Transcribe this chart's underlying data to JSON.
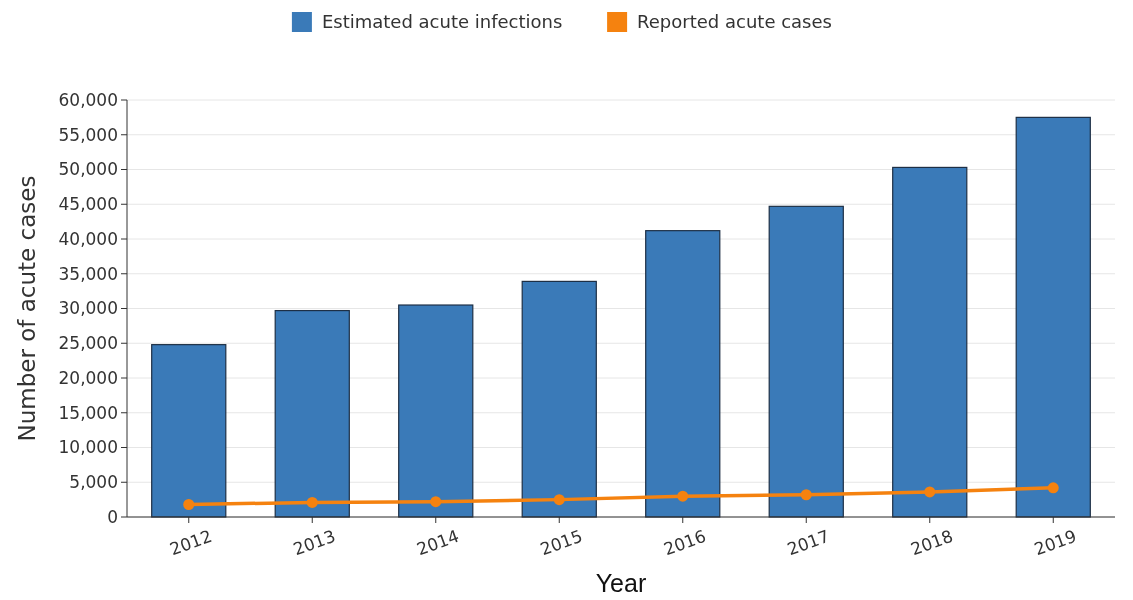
{
  "chart_data": {
    "type": "bar",
    "xlabel": "Year",
    "ylabel": "Number of acute cases",
    "categories": [
      "2012",
      "2013",
      "2014",
      "2015",
      "2016",
      "2017",
      "2018",
      "2019"
    ],
    "series": [
      {
        "name": "Estimated acute infections",
        "color": "#3a7ab8",
        "values": [
          24800,
          29700,
          30500,
          33900,
          41200,
          44700,
          50300,
          57500
        ]
      },
      {
        "name": "Reported acute cases",
        "color": "#f5820f",
        "type": "line",
        "values": [
          1800,
          2100,
          2200,
          2500,
          3000,
          3200,
          3600,
          4200
        ]
      }
    ],
    "ylim": [
      0,
      60000
    ],
    "yticks": [
      {
        "value": 0,
        "label": "0"
      },
      {
        "value": 5000,
        "label": "5,000"
      },
      {
        "value": 10000,
        "label": "10,000"
      },
      {
        "value": 15000,
        "label": "15,000"
      },
      {
        "value": 20000,
        "label": "20,000"
      },
      {
        "value": 25000,
        "label": "25,000"
      },
      {
        "value": 30000,
        "label": "30,000"
      },
      {
        "value": 35000,
        "label": "35,000"
      },
      {
        "value": 40000,
        "label": "40,000"
      },
      {
        "value": 45000,
        "label": "45,000"
      },
      {
        "value": 50000,
        "label": "50,000"
      },
      {
        "value": 55000,
        "label": "55,000"
      },
      {
        "value": 60000,
        "label": "60,000"
      }
    ],
    "grid": "y",
    "legend": "top",
    "marker": "circle",
    "line_style": "solid"
  }
}
